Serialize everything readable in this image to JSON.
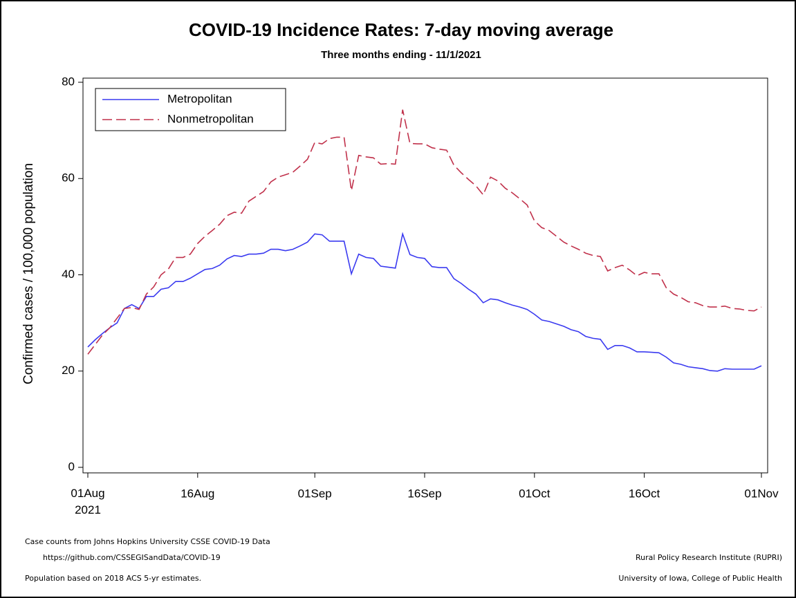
{
  "chart_data": {
    "type": "line",
    "title": "COVID-19 Incidence Rates: 7-day moving average",
    "subtitle": "Three months ending - 11/1/2021",
    "y_label": "Confirmed cases / 100,000 population",
    "x": [
      "2021-08-01",
      "2021-08-02",
      "2021-08-03",
      "2021-08-04",
      "2021-08-05",
      "2021-08-06",
      "2021-08-07",
      "2021-08-08",
      "2021-08-09",
      "2021-08-10",
      "2021-08-11",
      "2021-08-12",
      "2021-08-13",
      "2021-08-14",
      "2021-08-15",
      "2021-08-16",
      "2021-08-17",
      "2021-08-18",
      "2021-08-19",
      "2021-08-20",
      "2021-08-21",
      "2021-08-22",
      "2021-08-23",
      "2021-08-24",
      "2021-08-25",
      "2021-08-26",
      "2021-08-27",
      "2021-08-28",
      "2021-08-29",
      "2021-08-30",
      "2021-08-31",
      "2021-09-01",
      "2021-09-02",
      "2021-09-03",
      "2021-09-04",
      "2021-09-05",
      "2021-09-06",
      "2021-09-07",
      "2021-09-08",
      "2021-09-09",
      "2021-09-10",
      "2021-09-11",
      "2021-09-12",
      "2021-09-13",
      "2021-09-14",
      "2021-09-15",
      "2021-09-16",
      "2021-09-17",
      "2021-09-18",
      "2021-09-19",
      "2021-09-20",
      "2021-09-21",
      "2021-09-22",
      "2021-09-23",
      "2021-09-24",
      "2021-09-25",
      "2021-09-26",
      "2021-09-27",
      "2021-09-28",
      "2021-09-29",
      "2021-09-30",
      "2021-10-01",
      "2021-10-02",
      "2021-10-03",
      "2021-10-04",
      "2021-10-05",
      "2021-10-06",
      "2021-10-07",
      "2021-10-08",
      "2021-10-09",
      "2021-10-10",
      "2021-10-11",
      "2021-10-12",
      "2021-10-13",
      "2021-10-14",
      "2021-10-15",
      "2021-10-16",
      "2021-10-17",
      "2021-10-18",
      "2021-10-19",
      "2021-10-20",
      "2021-10-21",
      "2021-10-22",
      "2021-10-23",
      "2021-10-24",
      "2021-10-25",
      "2021-10-26",
      "2021-10-27",
      "2021-10-28",
      "2021-10-29",
      "2021-10-30",
      "2021-10-31",
      "2021-11-01"
    ],
    "series": [
      {
        "name": "Metropolitan",
        "color": "#3a3af0",
        "dash": "solid",
        "values": [
          25,
          26.5,
          27.8,
          29,
          30,
          33,
          33.8,
          33,
          35.5,
          35.5,
          37,
          37.3,
          38.6,
          38.6,
          39.3,
          40.2,
          41.1,
          41.3,
          42,
          43.3,
          44,
          43.8,
          44.3,
          44.3,
          44.5,
          45.3,
          45.3,
          45,
          45.3,
          46,
          46.8,
          48.5,
          48.3,
          47,
          47,
          47,
          40.2,
          44.3,
          43.6,
          43.4,
          41.8,
          41.6,
          41.4,
          48.5,
          44.2,
          43.6,
          43.4,
          41.7,
          41.5,
          41.5,
          39.2,
          38.2,
          37,
          36,
          34.2,
          35,
          34.8,
          34.2,
          33.7,
          33.3,
          32.8,
          31.8,
          30.6,
          30.3,
          29.8,
          29.3,
          28.6,
          28.2,
          27.2,
          26.8,
          26.6,
          24.5,
          25.3,
          25.3,
          24.8,
          24,
          24,
          23.9,
          23.8,
          22.9,
          21.7,
          21.4,
          20.9,
          20.7,
          20.5,
          20.1,
          20,
          20.5,
          20.4,
          20.4,
          20.4,
          20.4,
          21.1
        ]
      },
      {
        "name": "Nonmetropolitan",
        "color": "#c0304a",
        "dash": "dashed",
        "values": [
          23.5,
          25.5,
          27.5,
          29,
          31,
          33,
          33.2,
          32.8,
          36,
          37.5,
          40,
          41.2,
          43.6,
          43.6,
          44.3,
          46.5,
          48,
          49.2,
          50.5,
          52.3,
          53,
          52.8,
          55.3,
          56.3,
          57.3,
          59.3,
          60.3,
          60.8,
          61.3,
          62.6,
          64,
          67.5,
          67.2,
          68.3,
          68.6,
          68.6,
          57.5,
          64.8,
          64.5,
          64.3,
          63,
          63.1,
          63,
          74.3,
          67.3,
          67.2,
          67.2,
          66.4,
          66.1,
          65.9,
          62.8,
          61.2,
          59.8,
          58.5,
          56.6,
          60.3,
          59.5,
          58,
          57,
          55.8,
          54.5,
          51.2,
          49.8,
          49.2,
          48,
          46.8,
          46,
          45.3,
          44.5,
          44,
          43.8,
          40.8,
          41.5,
          42,
          41,
          39.8,
          40.5,
          40.2,
          40.2,
          37.3,
          36,
          35.3,
          34.4,
          34.2,
          33.6,
          33.3,
          33.3,
          33.5,
          33,
          32.9,
          32.6,
          32.5,
          33.3
        ]
      }
    ],
    "xlim": [
      "2021-08-01",
      "2021-11-01"
    ],
    "xticks": [
      {
        "value": "2021-08-01",
        "label": "01Aug 2021"
      },
      {
        "value": "2021-08-16",
        "label": "16Aug"
      },
      {
        "value": "2021-09-01",
        "label": "01Sep"
      },
      {
        "value": "2021-09-16",
        "label": "16Sep"
      },
      {
        "value": "2021-10-01",
        "label": "01Oct"
      },
      {
        "value": "2021-10-16",
        "label": "16Oct"
      },
      {
        "value": "2021-11-01",
        "label": "01Nov"
      }
    ],
    "ylim": [
      0,
      80
    ],
    "yticks": [
      0,
      20,
      40,
      60,
      80
    ],
    "legend": "top-left",
    "notes_left": [
      "Case counts from Johns Hopkins University CSSE COVID-19 Data",
      "https://github.com/CSSEGISandData/COVID-19",
      "Population based on 2018 ACS 5-yr estimates."
    ],
    "notes_right": [
      "Rural Policy Research Institute (RUPRI)",
      "University of Iowa, College of Public Health"
    ]
  }
}
